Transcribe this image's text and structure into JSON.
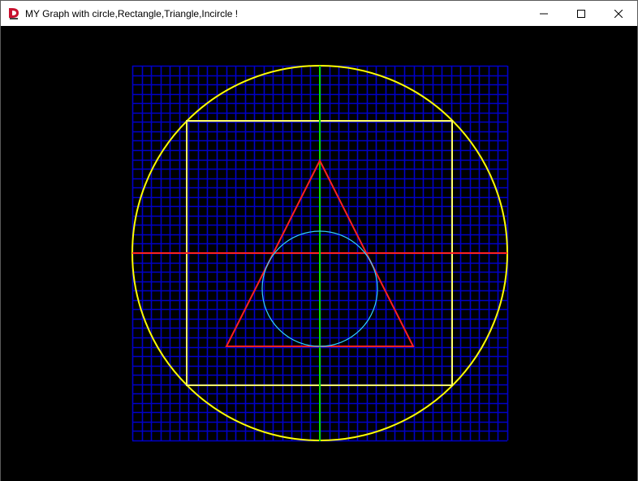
{
  "window": {
    "title": "MY Graph with circle,Rectangle,Triangle,Incircle !",
    "app_icon": "graphics-app-icon",
    "controls": [
      "minimize-icon",
      "maximize-icon",
      "close-icon"
    ]
  },
  "graph": {
    "background_color": "#000000",
    "grid": {
      "color": "#0000c8",
      "cells_per_side": 40,
      "visible": true
    },
    "x_axis": {
      "color": "#ff2020"
    },
    "y_axis": {
      "color": "#00e000"
    },
    "circle": {
      "color": "#ffff00"
    },
    "rectangle": {
      "color": "#ffff66"
    },
    "triangle": {
      "color": "#ff2020"
    },
    "incircle": {
      "color": "#30d0ff"
    }
  }
}
